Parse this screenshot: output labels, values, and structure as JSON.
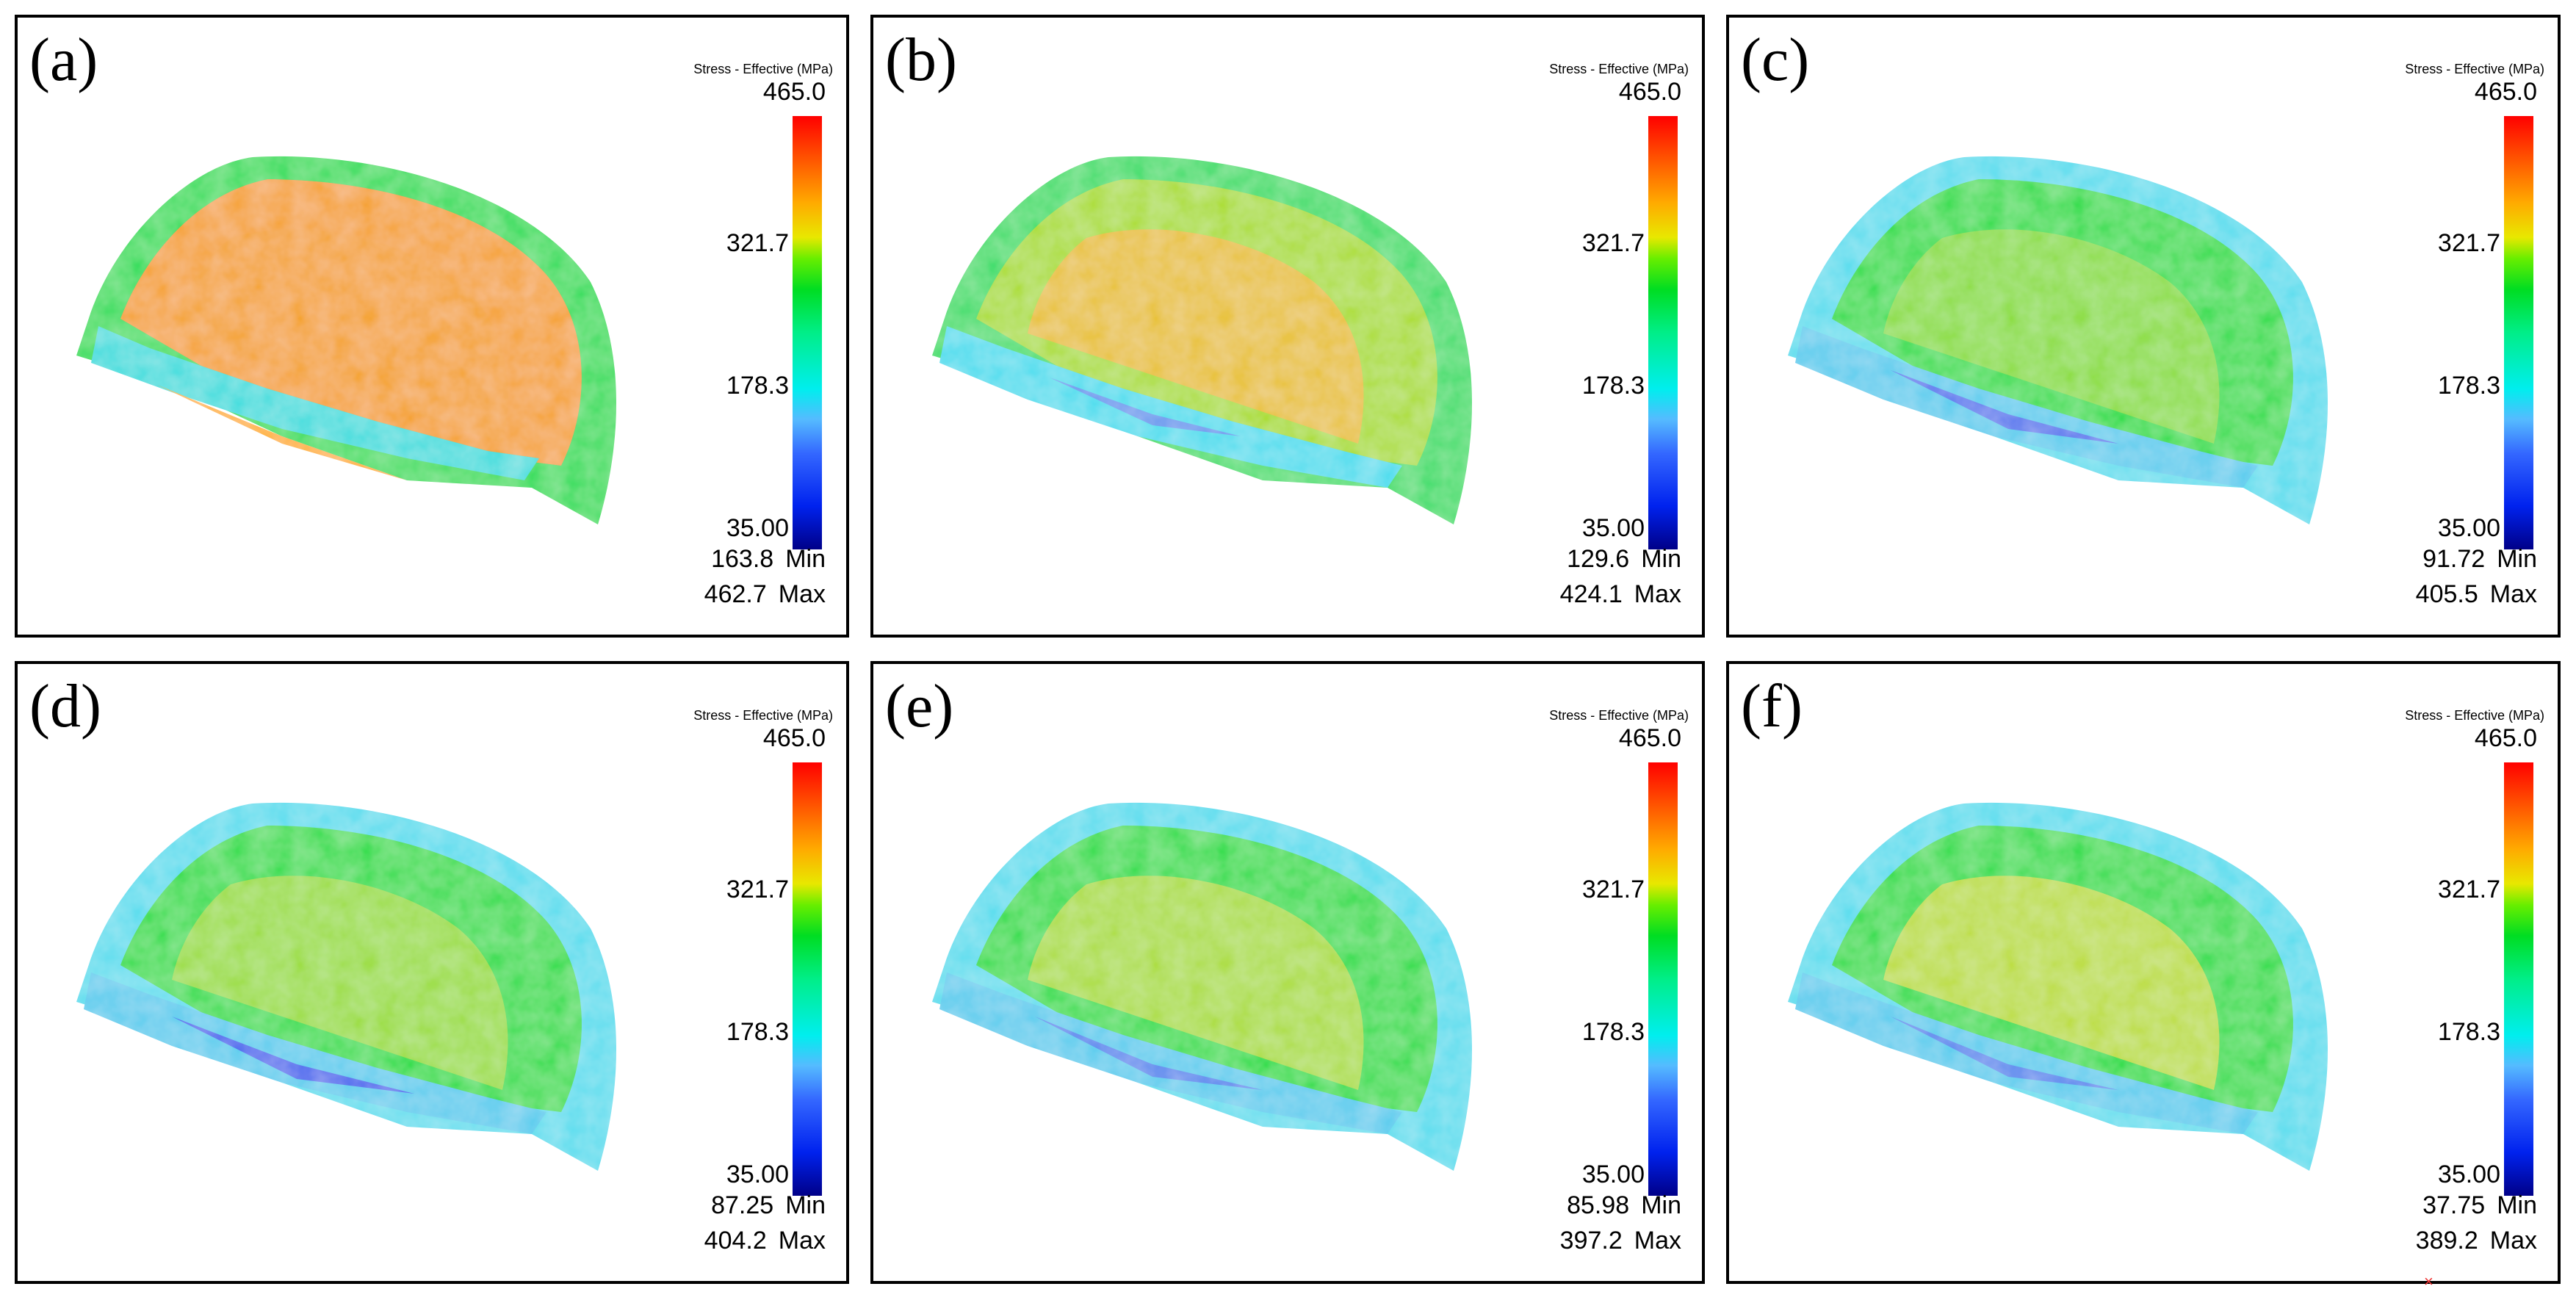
{
  "legend": {
    "title": "Stress - Effective (MPa)",
    "max": "465.0",
    "upper": "321.7",
    "mid": "178.3",
    "min": "35.00",
    "min_label": "Min",
    "max_label": "Max",
    "colors": [
      "#ff0000",
      "#ffaa00",
      "#e8e800",
      "#00dd22",
      "#00eeee",
      "#3366ff",
      "#000088"
    ]
  },
  "panels": [
    {
      "letter": "(a)",
      "min_value": "163.8",
      "max_value": "462.7"
    },
    {
      "letter": "(b)",
      "min_value": "129.6",
      "max_value": "424.1"
    },
    {
      "letter": "(c)",
      "min_value": "91.72",
      "max_value": "405.5"
    },
    {
      "letter": "(d)",
      "min_value": "87.25",
      "max_value": "404.2"
    },
    {
      "letter": "(e)",
      "min_value": "85.98",
      "max_value": "397.2"
    },
    {
      "letter": "(f)",
      "min_value": "37.75",
      "max_value": "389.2"
    }
  ]
}
